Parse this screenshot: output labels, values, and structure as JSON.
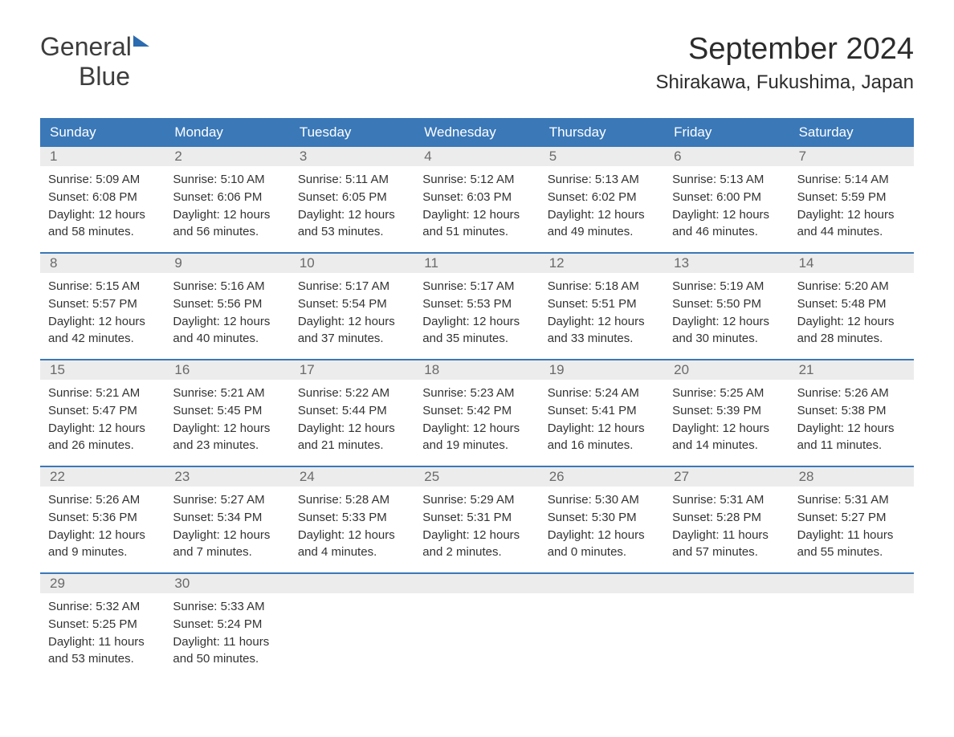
{
  "logo": {
    "textGray": "General",
    "textBlue": "Blue"
  },
  "title": "September 2024",
  "location": "Shirakawa, Fukushima, Japan",
  "colors": {
    "headerBg": "#3a78b8",
    "headerFg": "#ffffff",
    "dayNumBg": "#ececec",
    "dayNumFg": "#6a6a6a",
    "bodyFg": "#333333",
    "borderTop": "#3a78b8",
    "pageBg": "#ffffff",
    "logoBlue": "#2b6bb0",
    "logoGray": "#5a5a5a",
    "titleFg": "#2c2c2c"
  },
  "typography": {
    "bodyFontSize": 15,
    "dayNumFontSize": 17,
    "headerFontSize": 17,
    "titleFontSize": 38,
    "locationFontSize": 24,
    "logoFontSize": 32
  },
  "dayNames": [
    "Sunday",
    "Monday",
    "Tuesday",
    "Wednesday",
    "Thursday",
    "Friday",
    "Saturday"
  ],
  "weeks": [
    [
      {
        "num": "1",
        "sunrise": "Sunrise: 5:09 AM",
        "sunset": "Sunset: 6:08 PM",
        "daylight": "Daylight: 12 hours and 58 minutes."
      },
      {
        "num": "2",
        "sunrise": "Sunrise: 5:10 AM",
        "sunset": "Sunset: 6:06 PM",
        "daylight": "Daylight: 12 hours and 56 minutes."
      },
      {
        "num": "3",
        "sunrise": "Sunrise: 5:11 AM",
        "sunset": "Sunset: 6:05 PM",
        "daylight": "Daylight: 12 hours and 53 minutes."
      },
      {
        "num": "4",
        "sunrise": "Sunrise: 5:12 AM",
        "sunset": "Sunset: 6:03 PM",
        "daylight": "Daylight: 12 hours and 51 minutes."
      },
      {
        "num": "5",
        "sunrise": "Sunrise: 5:13 AM",
        "sunset": "Sunset: 6:02 PM",
        "daylight": "Daylight: 12 hours and 49 minutes."
      },
      {
        "num": "6",
        "sunrise": "Sunrise: 5:13 AM",
        "sunset": "Sunset: 6:00 PM",
        "daylight": "Daylight: 12 hours and 46 minutes."
      },
      {
        "num": "7",
        "sunrise": "Sunrise: 5:14 AM",
        "sunset": "Sunset: 5:59 PM",
        "daylight": "Daylight: 12 hours and 44 minutes."
      }
    ],
    [
      {
        "num": "8",
        "sunrise": "Sunrise: 5:15 AM",
        "sunset": "Sunset: 5:57 PM",
        "daylight": "Daylight: 12 hours and 42 minutes."
      },
      {
        "num": "9",
        "sunrise": "Sunrise: 5:16 AM",
        "sunset": "Sunset: 5:56 PM",
        "daylight": "Daylight: 12 hours and 40 minutes."
      },
      {
        "num": "10",
        "sunrise": "Sunrise: 5:17 AM",
        "sunset": "Sunset: 5:54 PM",
        "daylight": "Daylight: 12 hours and 37 minutes."
      },
      {
        "num": "11",
        "sunrise": "Sunrise: 5:17 AM",
        "sunset": "Sunset: 5:53 PM",
        "daylight": "Daylight: 12 hours and 35 minutes."
      },
      {
        "num": "12",
        "sunrise": "Sunrise: 5:18 AM",
        "sunset": "Sunset: 5:51 PM",
        "daylight": "Daylight: 12 hours and 33 minutes."
      },
      {
        "num": "13",
        "sunrise": "Sunrise: 5:19 AM",
        "sunset": "Sunset: 5:50 PM",
        "daylight": "Daylight: 12 hours and 30 minutes."
      },
      {
        "num": "14",
        "sunrise": "Sunrise: 5:20 AM",
        "sunset": "Sunset: 5:48 PM",
        "daylight": "Daylight: 12 hours and 28 minutes."
      }
    ],
    [
      {
        "num": "15",
        "sunrise": "Sunrise: 5:21 AM",
        "sunset": "Sunset: 5:47 PM",
        "daylight": "Daylight: 12 hours and 26 minutes."
      },
      {
        "num": "16",
        "sunrise": "Sunrise: 5:21 AM",
        "sunset": "Sunset: 5:45 PM",
        "daylight": "Daylight: 12 hours and 23 minutes."
      },
      {
        "num": "17",
        "sunrise": "Sunrise: 5:22 AM",
        "sunset": "Sunset: 5:44 PM",
        "daylight": "Daylight: 12 hours and 21 minutes."
      },
      {
        "num": "18",
        "sunrise": "Sunrise: 5:23 AM",
        "sunset": "Sunset: 5:42 PM",
        "daylight": "Daylight: 12 hours and 19 minutes."
      },
      {
        "num": "19",
        "sunrise": "Sunrise: 5:24 AM",
        "sunset": "Sunset: 5:41 PM",
        "daylight": "Daylight: 12 hours and 16 minutes."
      },
      {
        "num": "20",
        "sunrise": "Sunrise: 5:25 AM",
        "sunset": "Sunset: 5:39 PM",
        "daylight": "Daylight: 12 hours and 14 minutes."
      },
      {
        "num": "21",
        "sunrise": "Sunrise: 5:26 AM",
        "sunset": "Sunset: 5:38 PM",
        "daylight": "Daylight: 12 hours and 11 minutes."
      }
    ],
    [
      {
        "num": "22",
        "sunrise": "Sunrise: 5:26 AM",
        "sunset": "Sunset: 5:36 PM",
        "daylight": "Daylight: 12 hours and 9 minutes."
      },
      {
        "num": "23",
        "sunrise": "Sunrise: 5:27 AM",
        "sunset": "Sunset: 5:34 PM",
        "daylight": "Daylight: 12 hours and 7 minutes."
      },
      {
        "num": "24",
        "sunrise": "Sunrise: 5:28 AM",
        "sunset": "Sunset: 5:33 PM",
        "daylight": "Daylight: 12 hours and 4 minutes."
      },
      {
        "num": "25",
        "sunrise": "Sunrise: 5:29 AM",
        "sunset": "Sunset: 5:31 PM",
        "daylight": "Daylight: 12 hours and 2 minutes."
      },
      {
        "num": "26",
        "sunrise": "Sunrise: 5:30 AM",
        "sunset": "Sunset: 5:30 PM",
        "daylight": "Daylight: 12 hours and 0 minutes."
      },
      {
        "num": "27",
        "sunrise": "Sunrise: 5:31 AM",
        "sunset": "Sunset: 5:28 PM",
        "daylight": "Daylight: 11 hours and 57 minutes."
      },
      {
        "num": "28",
        "sunrise": "Sunrise: 5:31 AM",
        "sunset": "Sunset: 5:27 PM",
        "daylight": "Daylight: 11 hours and 55 minutes."
      }
    ],
    [
      {
        "num": "29",
        "sunrise": "Sunrise: 5:32 AM",
        "sunset": "Sunset: 5:25 PM",
        "daylight": "Daylight: 11 hours and 53 minutes."
      },
      {
        "num": "30",
        "sunrise": "Sunrise: 5:33 AM",
        "sunset": "Sunset: 5:24 PM",
        "daylight": "Daylight: 11 hours and 50 minutes."
      },
      {
        "num": "",
        "sunrise": "",
        "sunset": "",
        "daylight": ""
      },
      {
        "num": "",
        "sunrise": "",
        "sunset": "",
        "daylight": ""
      },
      {
        "num": "",
        "sunrise": "",
        "sunset": "",
        "daylight": ""
      },
      {
        "num": "",
        "sunrise": "",
        "sunset": "",
        "daylight": ""
      },
      {
        "num": "",
        "sunrise": "",
        "sunset": "",
        "daylight": ""
      }
    ]
  ]
}
